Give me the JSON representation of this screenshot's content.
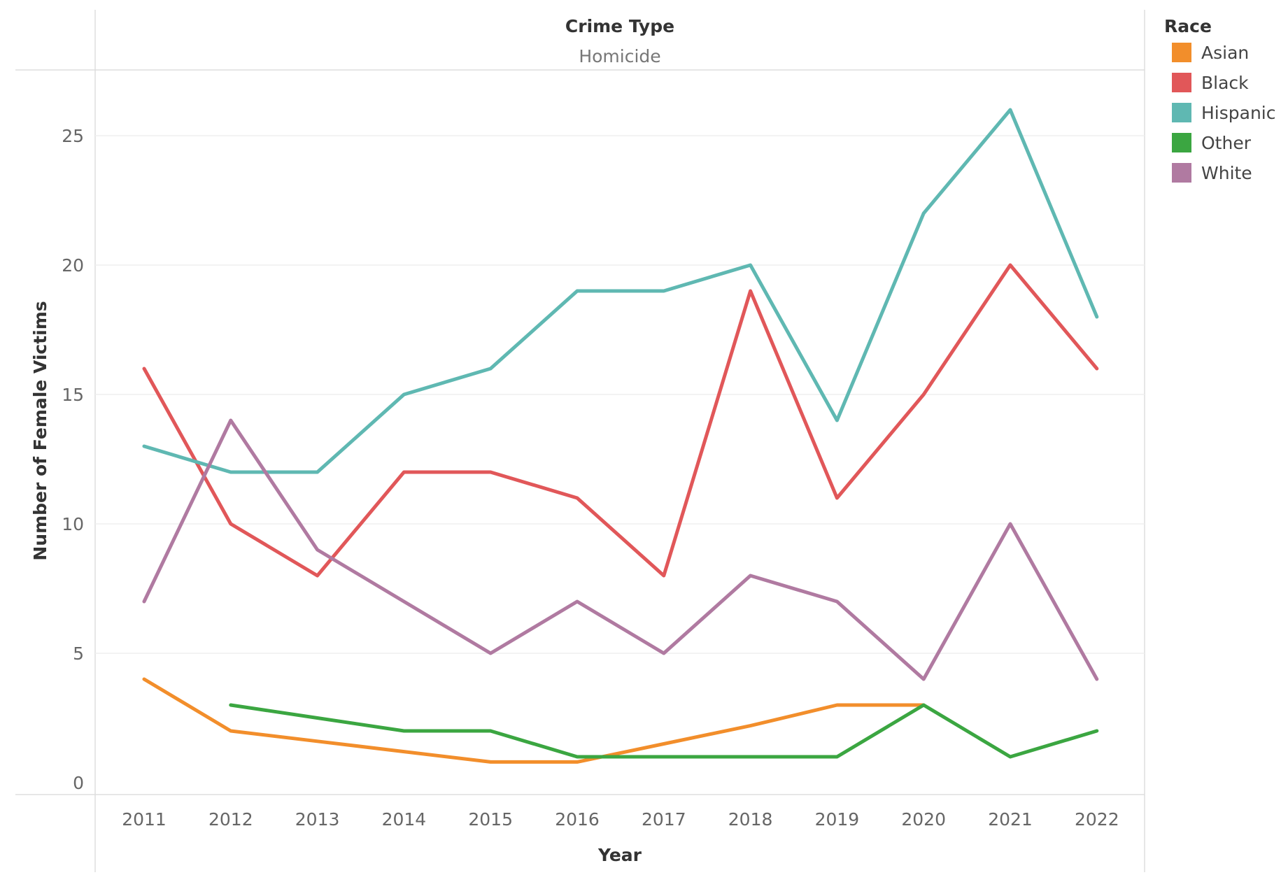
{
  "header": {
    "title": "Crime Type",
    "subtitle": "Homicide"
  },
  "legend": {
    "title": "Race"
  },
  "chart_data": {
    "type": "line",
    "title": "",
    "header_field": "Crime Type",
    "header_value": "Homicide",
    "xlabel": "Year",
    "ylabel": "Number of Female Victims",
    "x": [
      2011,
      2012,
      2013,
      2014,
      2015,
      2016,
      2017,
      2018,
      2019,
      2020,
      2021,
      2022
    ],
    "x_tick_labels": [
      "2011",
      "2012",
      "2013",
      "2014",
      "2015",
      "2016",
      "2017",
      "2018",
      "2019",
      "2020",
      "2021",
      "2022"
    ],
    "ylim": [
      0,
      27.5
    ],
    "y_ticks": [
      0,
      5,
      10,
      15,
      20,
      25
    ],
    "y_tick_labels": [
      "0",
      "5",
      "10",
      "15",
      "20",
      "25"
    ],
    "grid": true,
    "legend_title": "Race",
    "legend_position": "right",
    "series": [
      {
        "name": "Asian",
        "color": "#F28E2B",
        "values": [
          4,
          2,
          1.6,
          1.2,
          0.8,
          0.8,
          1.5,
          2.2,
          3,
          3,
          null,
          null
        ]
      },
      {
        "name": "Black",
        "color": "#E15759",
        "values": [
          16,
          10,
          8,
          12,
          12,
          11,
          8,
          19,
          11,
          15,
          20,
          16
        ]
      },
      {
        "name": "Hispanic",
        "color": "#5FB8B2",
        "values": [
          13,
          12,
          12,
          15,
          16,
          19,
          19,
          20,
          14,
          22,
          26,
          18
        ]
      },
      {
        "name": "Other",
        "color": "#3BA641",
        "values": [
          null,
          3,
          2.5,
          2,
          2,
          1,
          1,
          1,
          1,
          3,
          1,
          2
        ]
      },
      {
        "name": "White",
        "color": "#B07AA1",
        "values": [
          7,
          14,
          9,
          7,
          5,
          7,
          5,
          8,
          7,
          4,
          10,
          4
        ]
      }
    ]
  }
}
